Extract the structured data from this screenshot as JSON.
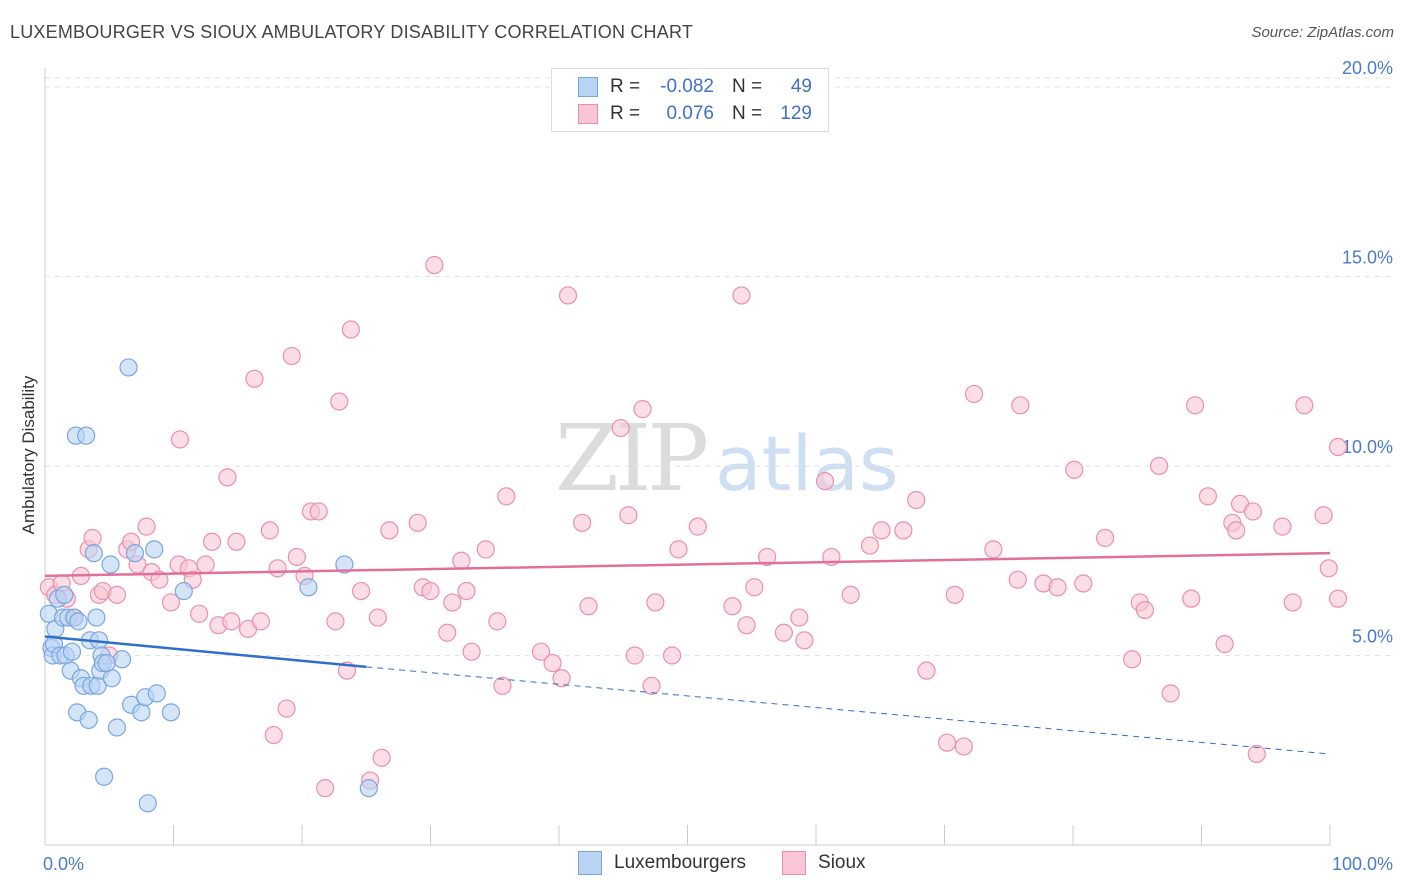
{
  "title": "LUXEMBOURGER VS SIOUX AMBULATORY DISABILITY CORRELATION CHART",
  "source": "Source: ZipAtlas.com",
  "watermark": {
    "zip": "ZIP",
    "atlas": "atlas"
  },
  "legend": {
    "rows": [
      {
        "r_label": "R =",
        "r_value": "-0.082",
        "n_label": "N =",
        "n_value": "49",
        "fill": "#b9d3f3",
        "stroke": "#7aa6e0"
      },
      {
        "r_label": "R =",
        "r_value": "0.076",
        "n_label": "N =",
        "n_value": "129",
        "fill": "#f9c6d6",
        "stroke": "#ea90ad"
      }
    ]
  },
  "bottom_legend": [
    {
      "label": "Luxembourgers",
      "fill": "#b9d3f3",
      "stroke": "#7aa6e0"
    },
    {
      "label": "Sioux",
      "fill": "#f9c6d6",
      "stroke": "#ea90ad"
    }
  ],
  "chart_data": {
    "type": "scatter",
    "title": "LUXEMBOURGER VS SIOUX AMBULATORY DISABILITY CORRELATION CHART",
    "xlabel": "",
    "ylabel": "Ambulatory Disability",
    "xlim": [
      0,
      100
    ],
    "ylim": [
      0,
      20.5
    ],
    "x_tick_labels": [
      "0.0%",
      "100.0%"
    ],
    "y_ticks": [
      5,
      10,
      15,
      20
    ],
    "y_tick_labels": [
      "5.0%",
      "10.0%",
      "15.0%",
      "20.0%"
    ],
    "grid": true,
    "legend_placement": "top-center",
    "series": [
      {
        "name": "Luxembourgers",
        "color": "#7aa6e0",
        "fill": "#b9d3f3",
        "trend": {
          "x": [
            0,
            25
          ],
          "y": [
            5.5,
            4.7
          ],
          "dashed_to": [
            100,
            2.4
          ]
        },
        "points": [
          [
            0.3,
            6.1
          ],
          [
            0.5,
            5.2
          ],
          [
            0.6,
            5.0
          ],
          [
            0.7,
            5.3
          ],
          [
            0.8,
            5.7
          ],
          [
            1.0,
            6.5
          ],
          [
            1.2,
            5.0
          ],
          [
            1.4,
            6.0
          ],
          [
            1.5,
            6.6
          ],
          [
            1.6,
            5.0
          ],
          [
            1.8,
            6.0
          ],
          [
            2.0,
            4.6
          ],
          [
            2.1,
            5.1
          ],
          [
            2.3,
            6.0
          ],
          [
            2.4,
            10.8
          ],
          [
            2.5,
            3.5
          ],
          [
            2.6,
            5.9
          ],
          [
            2.8,
            4.4
          ],
          [
            3.0,
            4.2
          ],
          [
            3.2,
            10.8
          ],
          [
            3.4,
            3.3
          ],
          [
            3.5,
            5.4
          ],
          [
            3.6,
            4.2
          ],
          [
            3.8,
            7.7
          ],
          [
            4.0,
            6.0
          ],
          [
            4.1,
            4.2
          ],
          [
            4.2,
            5.4
          ],
          [
            4.3,
            4.6
          ],
          [
            4.4,
            5.0
          ],
          [
            4.5,
            4.8
          ],
          [
            4.6,
            1.8
          ],
          [
            5.1,
            7.4
          ],
          [
            5.2,
            4.4
          ],
          [
            5.6,
            3.1
          ],
          [
            6.0,
            4.9
          ],
          [
            6.5,
            12.6
          ],
          [
            6.7,
            3.7
          ],
          [
            7.0,
            7.7
          ],
          [
            7.5,
            3.5
          ],
          [
            7.8,
            3.9
          ],
          [
            8.0,
            1.1
          ],
          [
            8.5,
            7.8
          ],
          [
            8.7,
            4.0
          ],
          [
            9.8,
            3.5
          ],
          [
            10.8,
            6.7
          ],
          [
            20.5,
            6.8
          ],
          [
            23.3,
            7.4
          ],
          [
            25.2,
            1.5
          ],
          [
            4.8,
            4.8
          ]
        ]
      },
      {
        "name": "Sioux",
        "color": "#ea90ad",
        "fill": "#f9c6d6",
        "trend": {
          "x": [
            0,
            100
          ],
          "y": [
            7.1,
            7.7
          ]
        },
        "points": [
          [
            0.3,
            6.8
          ],
          [
            0.8,
            6.6
          ],
          [
            1.3,
            6.9
          ],
          [
            1.7,
            6.5
          ],
          [
            2.2,
            6.0
          ],
          [
            2.8,
            7.1
          ],
          [
            3.4,
            7.8
          ],
          [
            3.7,
            8.1
          ],
          [
            4.2,
            6.6
          ],
          [
            4.5,
            6.7
          ],
          [
            5.0,
            5.0
          ],
          [
            5.6,
            6.6
          ],
          [
            6.4,
            7.8
          ],
          [
            6.7,
            8.0
          ],
          [
            7.2,
            7.4
          ],
          [
            7.9,
            8.4
          ],
          [
            8.3,
            7.2
          ],
          [
            8.9,
            7.0
          ],
          [
            9.8,
            6.4
          ],
          [
            10.4,
            7.4
          ],
          [
            10.5,
            10.7
          ],
          [
            11.2,
            7.3
          ],
          [
            11.5,
            7.0
          ],
          [
            12.0,
            6.1
          ],
          [
            12.5,
            7.4
          ],
          [
            13.0,
            8.0
          ],
          [
            13.5,
            5.8
          ],
          [
            14.2,
            9.7
          ],
          [
            14.5,
            5.9
          ],
          [
            14.9,
            8.0
          ],
          [
            15.8,
            5.7
          ],
          [
            16.3,
            12.3
          ],
          [
            16.8,
            5.9
          ],
          [
            17.5,
            8.3
          ],
          [
            17.8,
            2.9
          ],
          [
            18.1,
            7.3
          ],
          [
            18.8,
            3.6
          ],
          [
            19.2,
            12.9
          ],
          [
            19.6,
            7.6
          ],
          [
            20.2,
            7.1
          ],
          [
            20.7,
            8.8
          ],
          [
            21.3,
            8.8
          ],
          [
            21.8,
            1.5
          ],
          [
            22.6,
            5.9
          ],
          [
            22.9,
            11.7
          ],
          [
            23.5,
            4.6
          ],
          [
            23.8,
            13.6
          ],
          [
            24.6,
            6.7
          ],
          [
            25.3,
            1.7
          ],
          [
            25.9,
            6.0
          ],
          [
            26.2,
            2.3
          ],
          [
            26.8,
            8.3
          ],
          [
            29.0,
            8.5
          ],
          [
            29.4,
            6.8
          ],
          [
            30.0,
            6.7
          ],
          [
            30.3,
            15.3
          ],
          [
            31.3,
            5.6
          ],
          [
            31.7,
            6.4
          ],
          [
            32.4,
            7.5
          ],
          [
            32.8,
            6.7
          ],
          [
            33.2,
            5.1
          ],
          [
            34.3,
            7.8
          ],
          [
            35.2,
            5.9
          ],
          [
            35.6,
            4.2
          ],
          [
            35.9,
            9.2
          ],
          [
            38.6,
            5.1
          ],
          [
            39.5,
            4.8
          ],
          [
            40.2,
            4.4
          ],
          [
            40.7,
            14.5
          ],
          [
            41.8,
            8.5
          ],
          [
            42.3,
            6.3
          ],
          [
            44.8,
            11.0
          ],
          [
            45.4,
            8.7
          ],
          [
            45.9,
            5.0
          ],
          [
            46.5,
            11.5
          ],
          [
            47.2,
            4.2
          ],
          [
            47.5,
            6.4
          ],
          [
            48.8,
            5.0
          ],
          [
            49.3,
            7.8
          ],
          [
            50.8,
            8.4
          ],
          [
            53.5,
            6.3
          ],
          [
            54.2,
            14.5
          ],
          [
            54.6,
            5.8
          ],
          [
            55.2,
            6.8
          ],
          [
            56.2,
            7.6
          ],
          [
            57.5,
            5.6
          ],
          [
            58.7,
            6.0
          ],
          [
            59.1,
            5.4
          ],
          [
            60.7,
            9.6
          ],
          [
            61.2,
            7.6
          ],
          [
            62.7,
            6.6
          ],
          [
            64.2,
            7.9
          ],
          [
            65.1,
            8.3
          ],
          [
            66.8,
            8.3
          ],
          [
            67.8,
            9.1
          ],
          [
            68.6,
            4.6
          ],
          [
            70.2,
            2.7
          ],
          [
            70.8,
            6.6
          ],
          [
            71.5,
            2.6
          ],
          [
            72.3,
            11.9
          ],
          [
            73.8,
            7.8
          ],
          [
            75.7,
            7.0
          ],
          [
            75.9,
            11.6
          ],
          [
            77.7,
            6.9
          ],
          [
            78.8,
            6.8
          ],
          [
            80.1,
            9.9
          ],
          [
            80.8,
            6.9
          ],
          [
            82.5,
            8.1
          ],
          [
            84.6,
            4.9
          ],
          [
            85.2,
            6.4
          ],
          [
            85.6,
            6.2
          ],
          [
            86.7,
            10.0
          ],
          [
            87.6,
            4.0
          ],
          [
            89.2,
            6.5
          ],
          [
            89.5,
            11.6
          ],
          [
            90.5,
            9.2
          ],
          [
            91.8,
            5.3
          ],
          [
            92.4,
            8.5
          ],
          [
            92.7,
            8.3
          ],
          [
            93.0,
            9.0
          ],
          [
            94.0,
            8.8
          ],
          [
            94.3,
            2.4
          ],
          [
            96.3,
            8.4
          ],
          [
            97.1,
            6.4
          ],
          [
            98.0,
            11.6
          ],
          [
            99.5,
            8.7
          ],
          [
            99.9,
            7.3
          ],
          [
            101.0,
            10.5
          ],
          [
            103.1,
            6.5
          ]
        ]
      }
    ]
  }
}
